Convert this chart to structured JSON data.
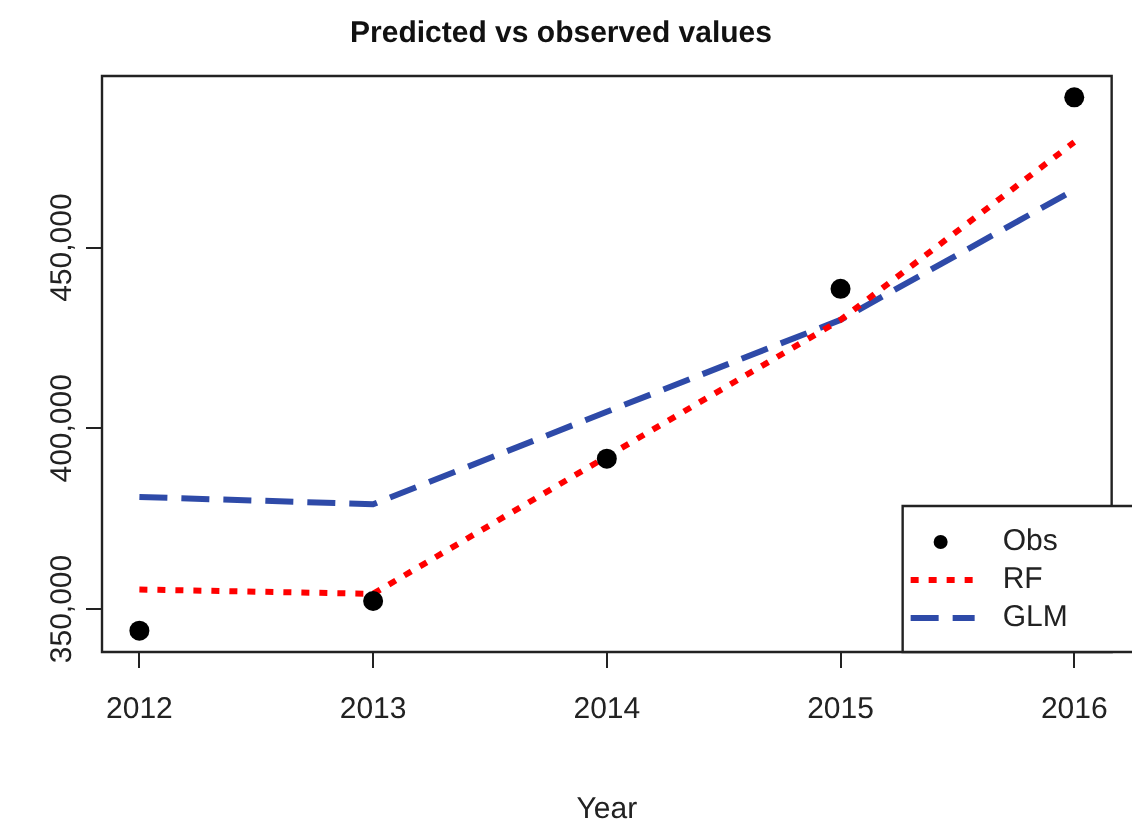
{
  "chart_data": {
    "type": "line",
    "title": "Predicted vs observed values",
    "xlabel": "Year",
    "x": [
      2012,
      2013,
      2014,
      2015,
      2016
    ],
    "series": [
      {
        "name": "Obs",
        "type": "scatter",
        "color": "#000000",
        "marker": "circle",
        "values": [
          344000,
          352200,
          391600,
          438600,
          491600
        ]
      },
      {
        "name": "RF",
        "type": "line",
        "color": "#ff0000",
        "line_style": "dotted",
        "marker": "none",
        "values": [
          355400,
          354200,
          392200,
          430000,
          479200
        ]
      },
      {
        "name": "GLM",
        "type": "line",
        "color": "#2e4aa8",
        "line_style": "dashed",
        "marker": "none",
        "values": [
          381000,
          379000,
          404600,
          430000,
          466000
        ]
      }
    ],
    "xlim": [
      2011.84,
      2016.16
    ],
    "xticks": [
      2012,
      2013,
      2014,
      2015,
      2016
    ],
    "ylim": [
      338100,
      497500
    ],
    "yticks": [
      {
        "value": 350000,
        "label": "350,000"
      },
      {
        "value": 400000,
        "label": "400,000"
      },
      {
        "value": 450000,
        "label": "450,000"
      }
    ],
    "grid": false,
    "legend": "bottom right"
  }
}
